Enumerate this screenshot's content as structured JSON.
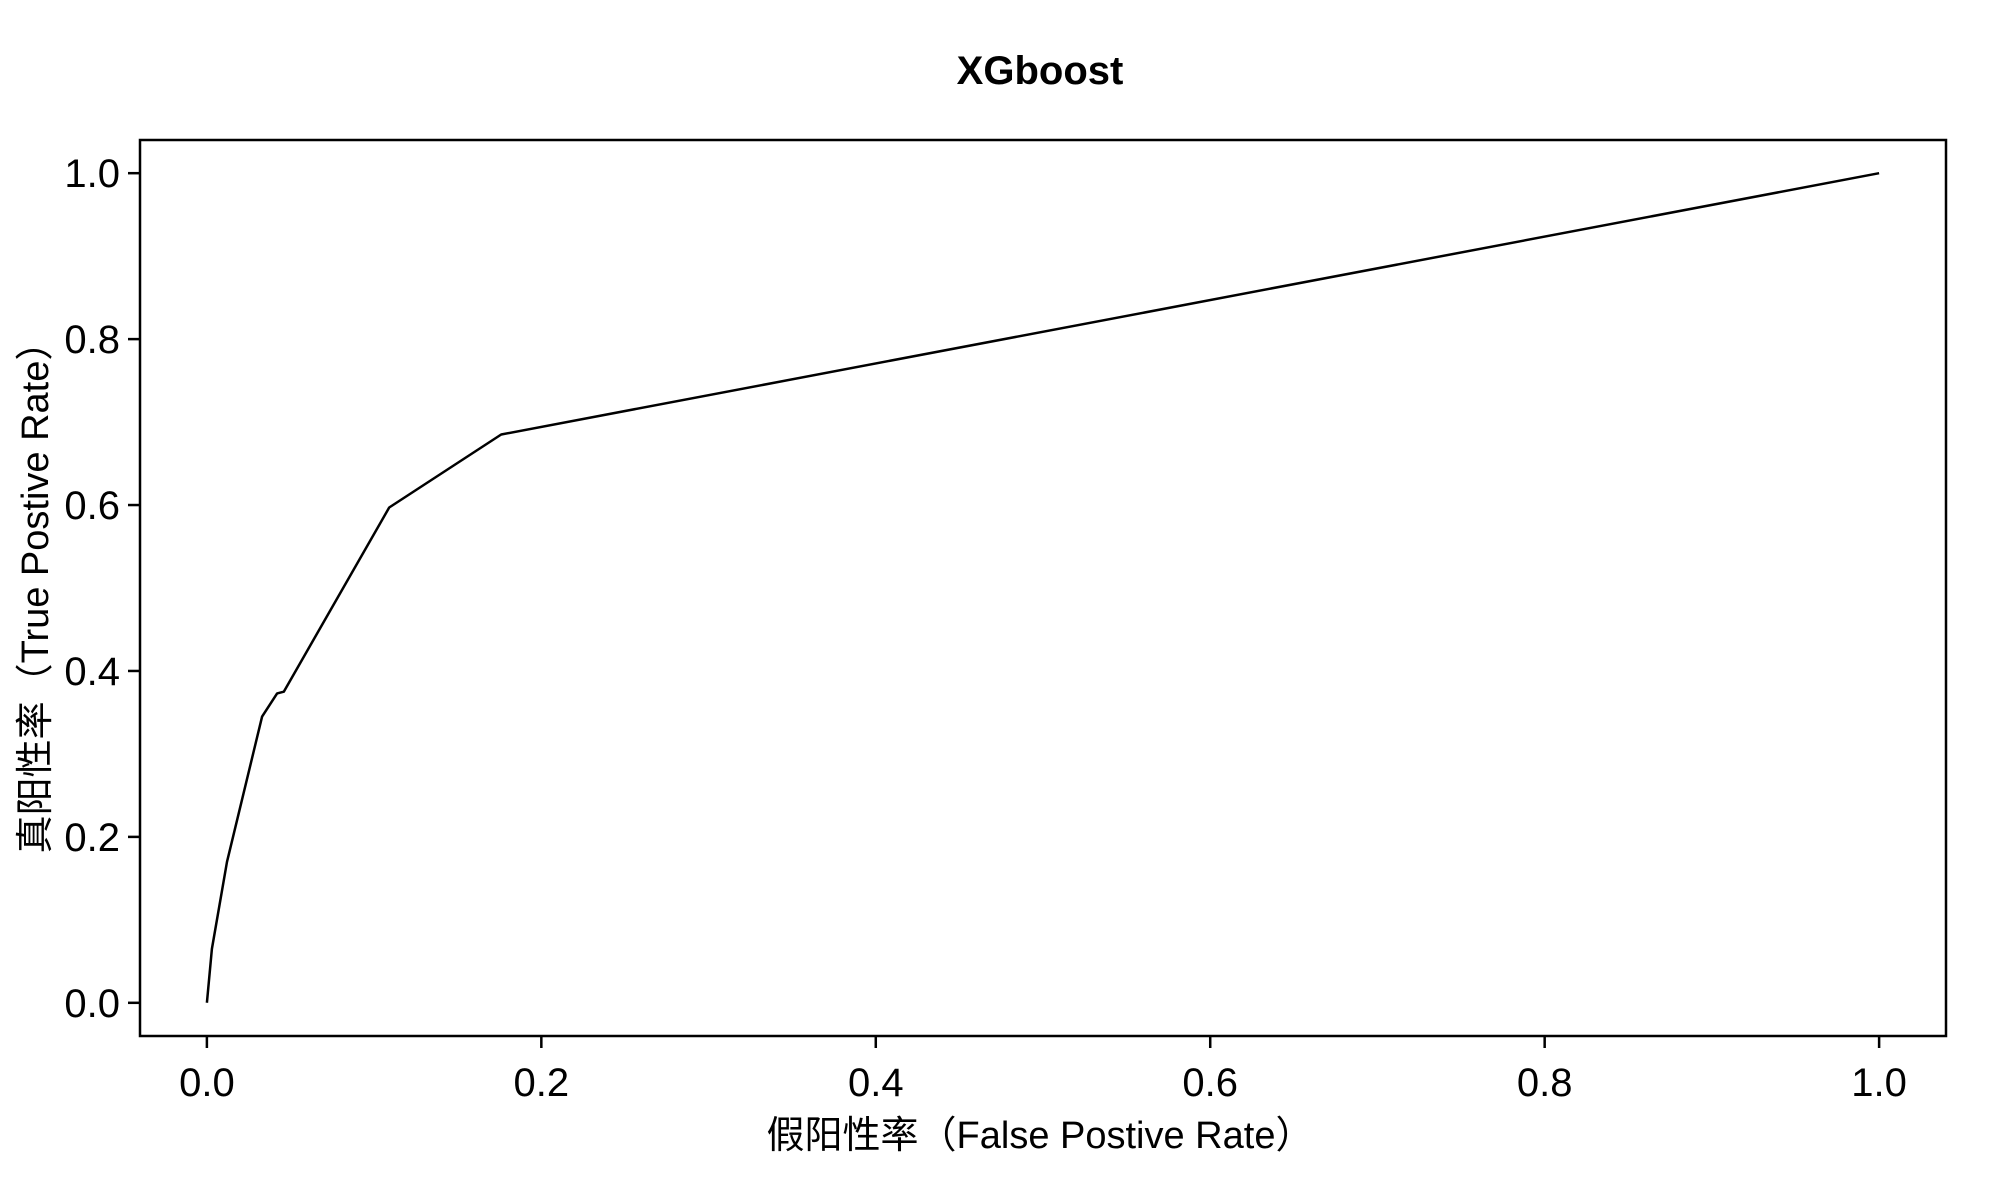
{
  "chart_data": {
    "type": "line",
    "title": "XGboost",
    "xlabel": "假阳性率（False Postive Rate）",
    "ylabel": "真阳性率（True Postive Rate）",
    "xlim": [
      -0.04,
      1.04
    ],
    "ylim": [
      -0.04,
      1.04
    ],
    "x_ticks": [
      0.0,
      0.2,
      0.4,
      0.6,
      0.8,
      1.0
    ],
    "y_ticks": [
      0.0,
      0.2,
      0.4,
      0.6,
      0.8,
      1.0
    ],
    "x_tick_labels": [
      "0.0",
      "0.2",
      "0.4",
      "0.6",
      "0.8",
      "1.0"
    ],
    "y_tick_labels": [
      "0.0",
      "0.2",
      "0.4",
      "0.6",
      "0.8",
      "1.0"
    ],
    "grid": false,
    "series": [
      {
        "x": [
          0.0,
          0.003,
          0.012,
          0.033,
          0.042,
          0.046,
          0.109,
          0.176,
          1.0
        ],
        "y": [
          0.0,
          0.065,
          0.17,
          0.345,
          0.373,
          0.375,
          0.597,
          0.685,
          1.0
        ],
        "color": "#000000"
      }
    ]
  }
}
